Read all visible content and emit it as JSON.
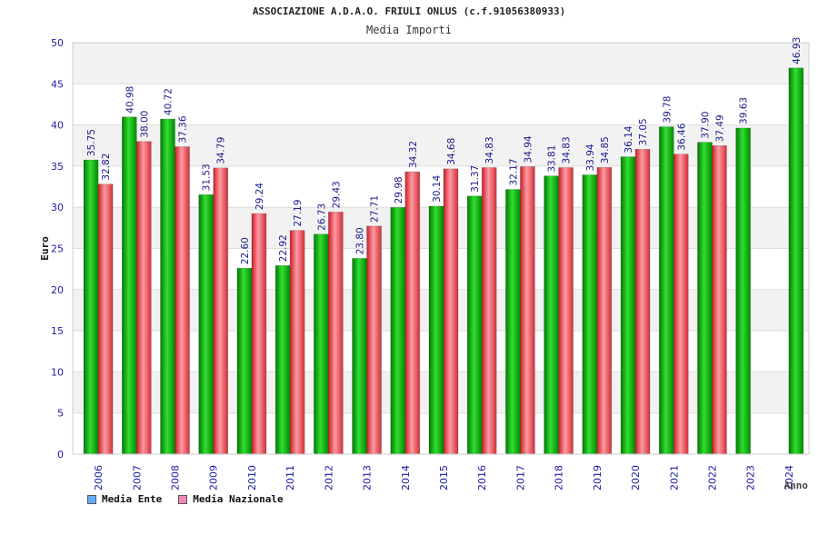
{
  "chart_data": {
    "type": "bar",
    "title": "ASSOCIAZIONE A.D.A.O. FRIULI ONLUS (c.f.91056380933)",
    "subtitle": "Media Importi",
    "ylabel": "Euro",
    "xlabel": "Anno",
    "ylim": [
      0,
      50
    ],
    "yticks": [
      0,
      5,
      10,
      15,
      20,
      25,
      30,
      35,
      40,
      45,
      50
    ],
    "grid": true,
    "legend_position": "bottom-left",
    "categories": [
      "2006",
      "2007",
      "2008",
      "2009",
      "2010",
      "2011",
      "2012",
      "2013",
      "2014",
      "2015",
      "2016",
      "2017",
      "2018",
      "2019",
      "2020",
      "2021",
      "2022",
      "2023",
      "2024"
    ],
    "series": [
      {
        "name": "Media Ente",
        "legend_color": "#66aaff",
        "bar_color": "#00b000",
        "values": [
          35.75,
          40.98,
          40.72,
          31.53,
          22.6,
          22.92,
          26.73,
          23.8,
          29.98,
          30.14,
          31.37,
          32.17,
          33.81,
          33.94,
          36.14,
          39.78,
          37.9,
          39.63,
          null
        ],
        "labels": [
          "35.75",
          "40.98",
          "40.72",
          "31.53",
          "22.60",
          "22.92",
          "26.73",
          "23.80",
          "29.98",
          "30.14",
          "31.37",
          "32.17",
          "33.81",
          "33.94",
          "36.14",
          "39.78",
          "37.90",
          "39.63",
          null
        ]
      },
      {
        "name": "Media Nazionale",
        "legend_color": "#ee88bb",
        "bar_color": "#e8404a",
        "values": [
          32.82,
          38.0,
          37.36,
          34.79,
          29.24,
          27.19,
          29.43,
          27.71,
          34.32,
          34.68,
          34.83,
          34.94,
          34.83,
          34.85,
          37.05,
          36.46,
          37.49,
          null,
          46.93
        ],
        "labels": [
          "32.82",
          "38.00",
          "37.36",
          "34.79",
          "29.24",
          "27.19",
          "29.43",
          "27.71",
          "34.32",
          "34.68",
          "34.83",
          "34.94",
          "34.83",
          "34.85",
          "37.05",
          "36.46",
          "37.49",
          null,
          "46.93"
        ]
      }
    ],
    "bar_colors_override": {
      "2024": "#00b000"
    }
  }
}
